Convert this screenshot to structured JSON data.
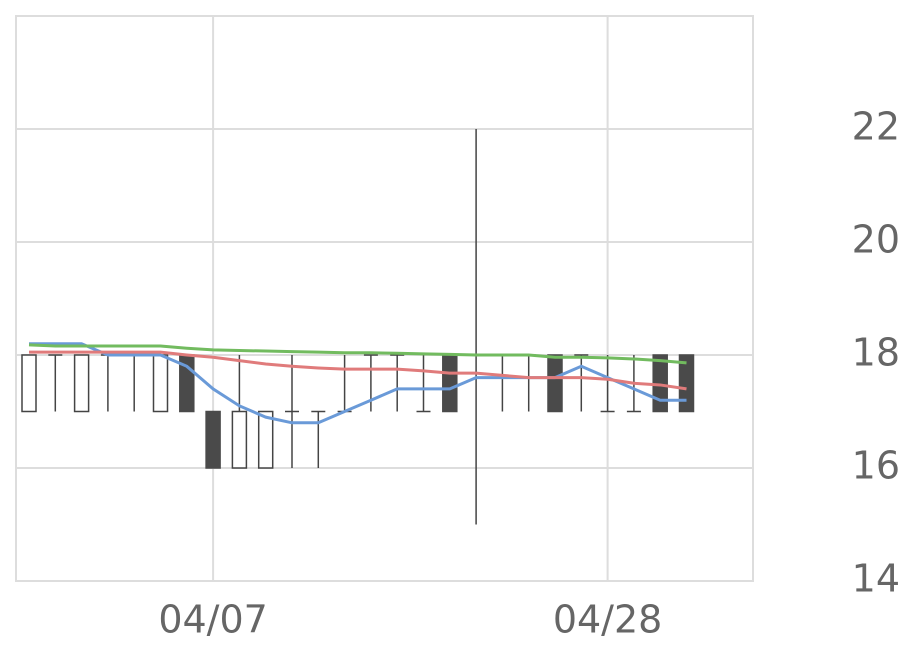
{
  "chart_data": {
    "type": "candlestick",
    "categories": [
      null,
      null,
      null,
      null,
      null,
      null,
      null,
      "04/07",
      null,
      null,
      null,
      null,
      null,
      null,
      null,
      null,
      null,
      null,
      null,
      null,
      null,
      null,
      "04/28",
      null,
      null,
      null
    ],
    "open": [
      17,
      18,
      17,
      18,
      18,
      17,
      18,
      17,
      16,
      16,
      17,
      17,
      17,
      18,
      18,
      17,
      18,
      18,
      18,
      18,
      18,
      18,
      17,
      17,
      18,
      18
    ],
    "high": [
      18,
      18,
      18,
      18,
      18,
      18,
      18,
      17,
      18,
      17,
      18,
      17,
      18,
      18,
      18,
      18,
      18,
      22,
      18,
      18,
      18,
      18,
      18,
      18,
      18,
      18
    ],
    "low": [
      17,
      17,
      17,
      17,
      17,
      17,
      17,
      16,
      16,
      16,
      16,
      16,
      17,
      17,
      17,
      17,
      17,
      15,
      17,
      17,
      17,
      17,
      17,
      17,
      17,
      17
    ],
    "close": [
      18,
      18,
      18,
      18,
      18,
      18,
      17,
      16,
      17,
      17,
      17,
      17,
      17,
      18,
      18,
      17,
      17,
      18,
      18,
      18,
      17,
      18,
      17,
      17,
      17,
      17
    ],
    "up_color": "#ffffff",
    "down_color": "#4a4a4a",
    "wick_color": "#444444",
    "series": [
      {
        "color": "#6a9ad8",
        "values": [
          18.2,
          18.2,
          18.2,
          18.0,
          18.0,
          18.0,
          17.8,
          17.4,
          17.1,
          16.9,
          16.8,
          16.8,
          17.0,
          17.2,
          17.4,
          17.4,
          17.4,
          17.6,
          17.6,
          17.6,
          17.6,
          17.8,
          17.6,
          17.4,
          17.2,
          17.2
        ]
      },
      {
        "color": "#e07b7b",
        "values": [
          18.05,
          18.05,
          18.05,
          18.05,
          18.05,
          18.05,
          18.0,
          17.96,
          17.9,
          17.84,
          17.8,
          17.77,
          17.75,
          17.75,
          17.75,
          17.72,
          17.68,
          17.68,
          17.64,
          17.6,
          17.6,
          17.6,
          17.57,
          17.5,
          17.47,
          17.4
        ]
      },
      {
        "color": "#72bb5f",
        "values": [
          18.18,
          18.16,
          18.16,
          18.16,
          18.16,
          18.16,
          18.12,
          18.09,
          18.08,
          18.07,
          18.06,
          18.05,
          18.04,
          18.04,
          18.03,
          18.02,
          18.01,
          18.0,
          18.0,
          18.0,
          17.96,
          17.96,
          17.95,
          17.93,
          17.9,
          17.86
        ]
      }
    ],
    "ylim": [
      14,
      24
    ],
    "yticks": [
      14,
      16,
      18,
      20,
      22
    ],
    "grid": true
  }
}
